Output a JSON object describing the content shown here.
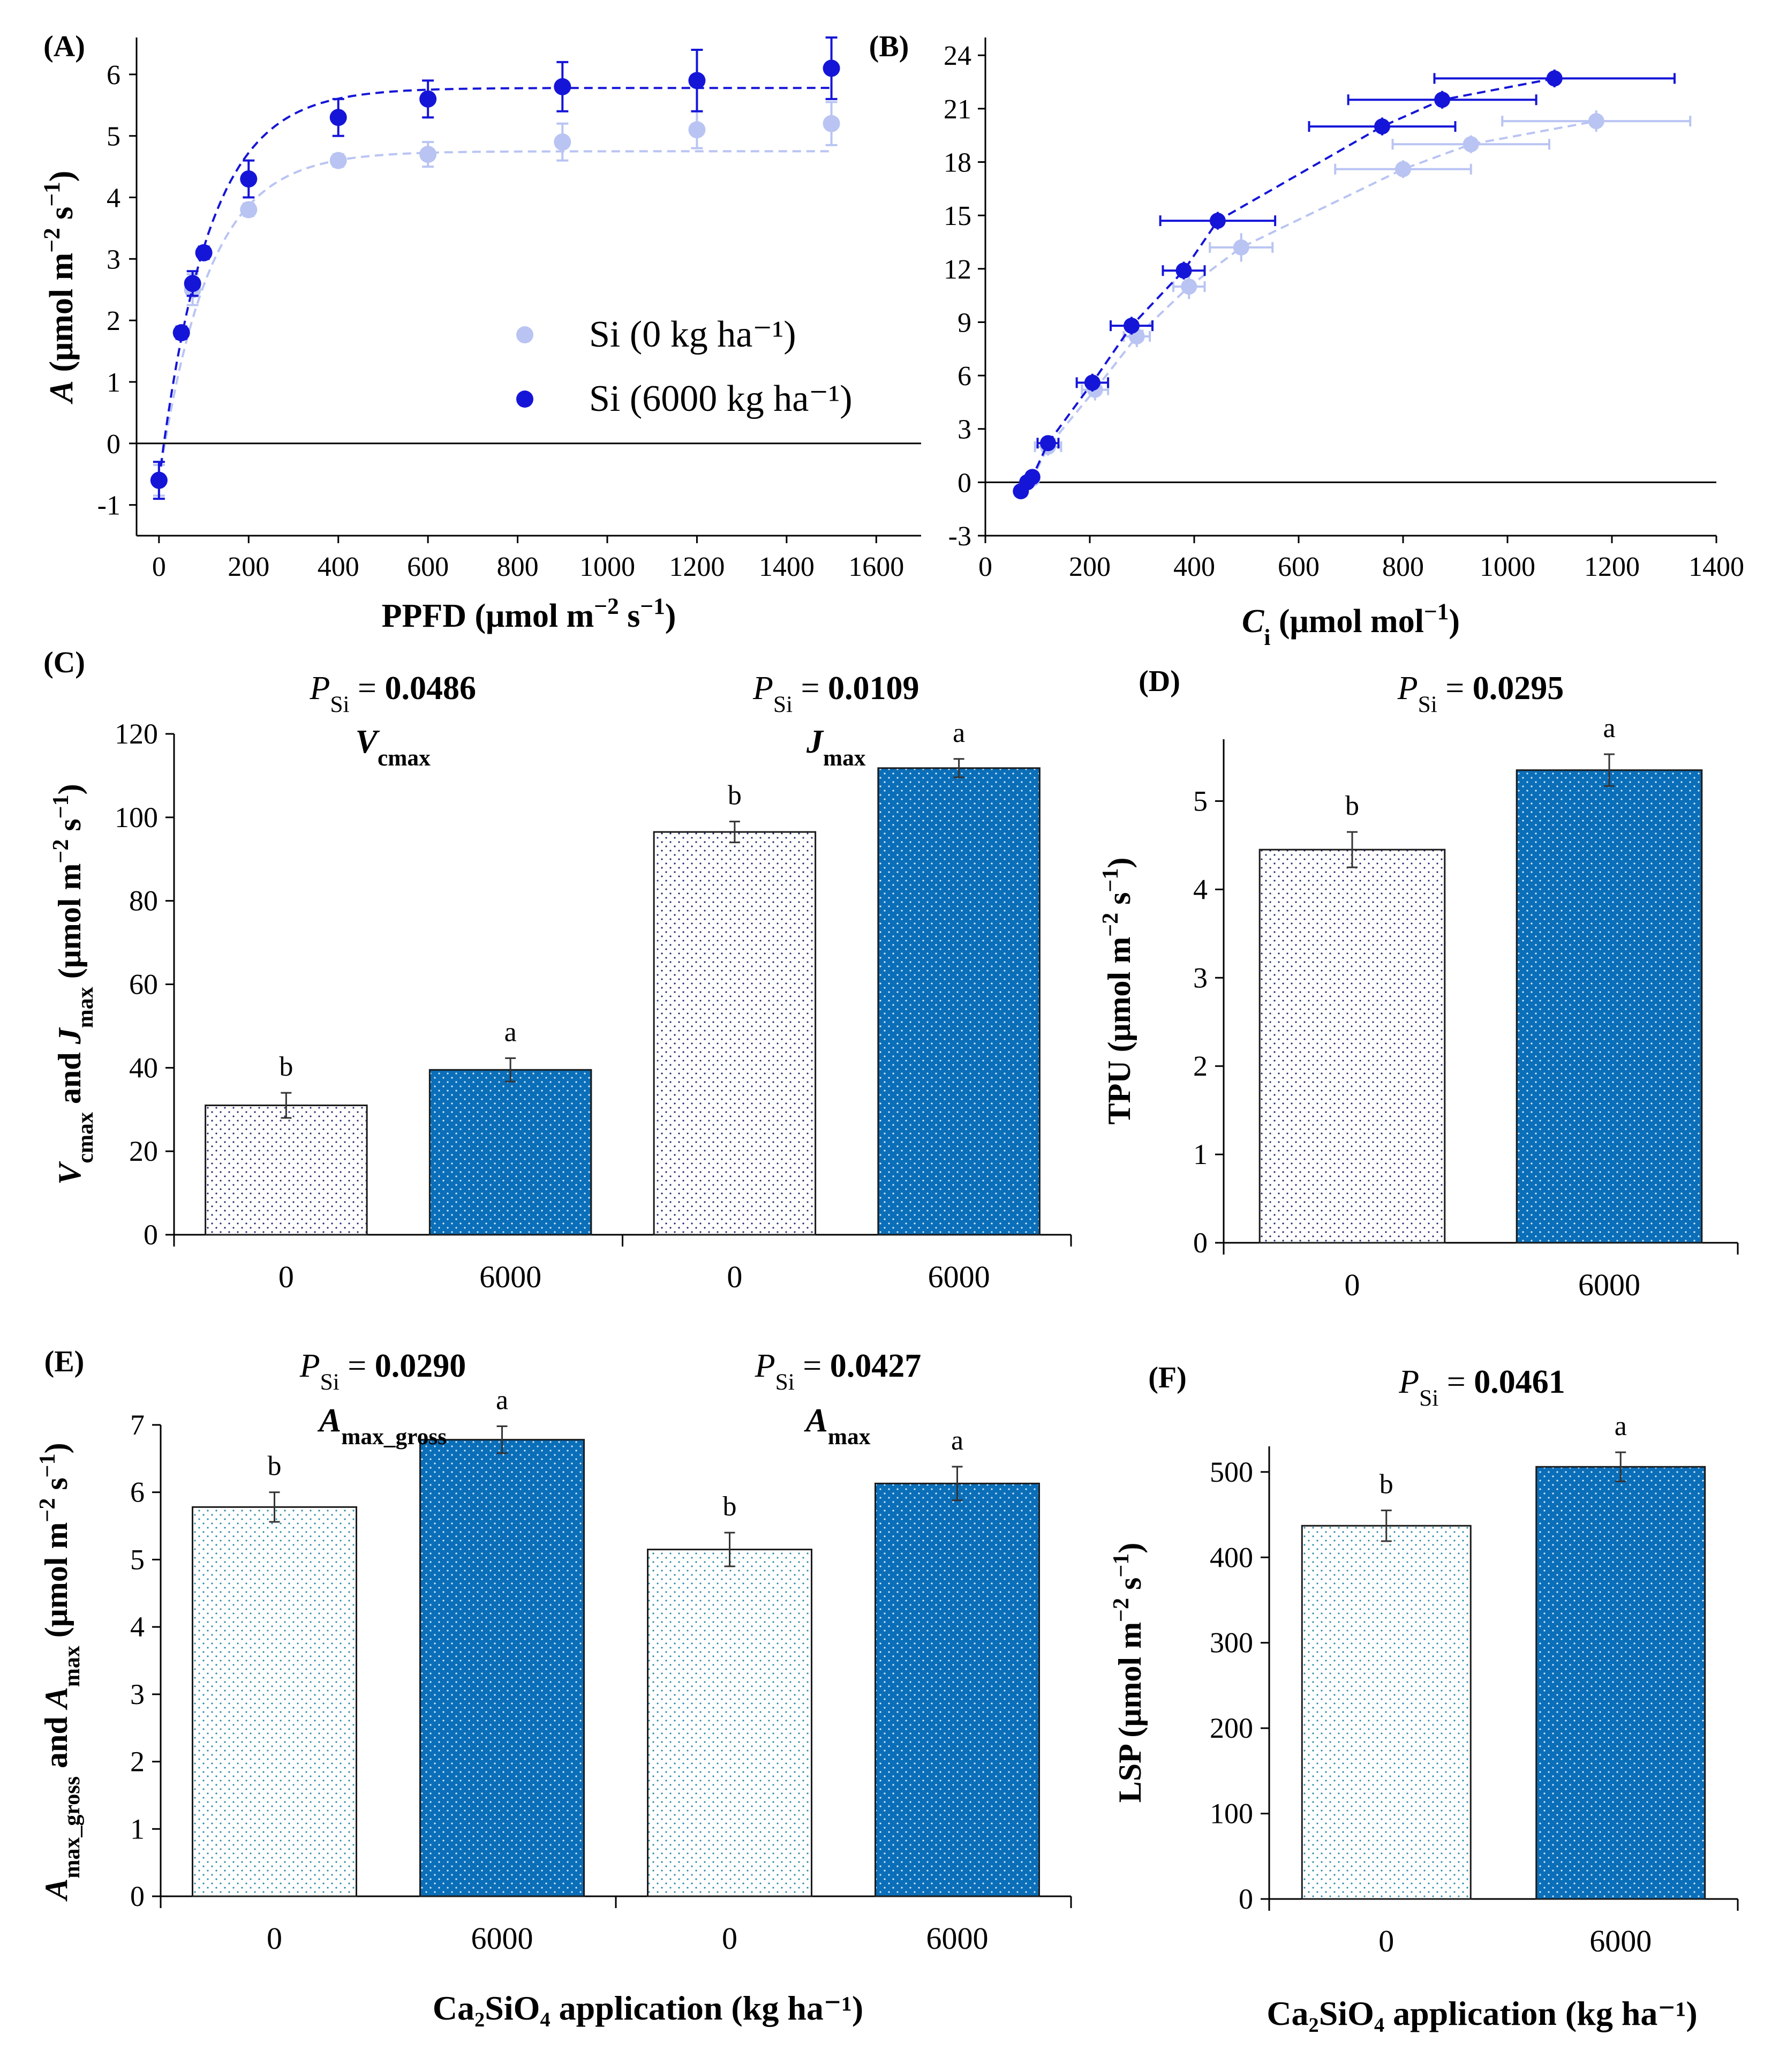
{
  "colors": {
    "light": "#b9c4f3",
    "dark": "#1515d8",
    "bar_dark": "#0b6eb8",
    "bar_light": "#ffffff",
    "axis": "#000000"
  },
  "chart_data": [
    {
      "panel": "(A)",
      "type": "scatter",
      "xlabel": "PPFD (μmol m⁻² s⁻¹)",
      "ylabel": "A (μmol m⁻² s⁻¹)",
      "xlim": [
        -50,
        1700
      ],
      "ylim": [
        -1.5,
        6.6
      ],
      "xticks": [
        "0",
        "200",
        "400",
        "600",
        "800",
        "1000",
        "1200",
        "1400",
        "1600"
      ],
      "yticks": [
        "-1",
        "0",
        "1",
        "2",
        "3",
        "4",
        "5",
        "6"
      ],
      "legend": [
        {
          "label": "Si (0 kg ha⁻¹)",
          "color": "#b9c4f3"
        },
        {
          "label": "Si (6000 kg ha⁻¹)",
          "color": "#1515d8"
        }
      ],
      "series": [
        {
          "name": "Si (0 kg ha⁻¹)",
          "color": "#b9c4f3",
          "x": [
            0,
            50,
            75,
            100,
            200,
            400,
            600,
            900,
            1200,
            1500
          ],
          "y": [
            -0.6,
            1.8,
            2.5,
            3.1,
            3.8,
            4.6,
            4.7,
            4.9,
            5.1,
            5.2
          ],
          "err": [
            0.25,
            0.1,
            0.25,
            0.1,
            0.1,
            0.1,
            0.2,
            0.3,
            0.3,
            0.35
          ],
          "fit": {
            "max": 4.75,
            "k": 0.009
          }
        },
        {
          "name": "Si (6000 kg ha⁻¹)",
          "color": "#1515d8",
          "x": [
            0,
            50,
            75,
            100,
            200,
            400,
            600,
            900,
            1200,
            1500
          ],
          "y": [
            -0.6,
            1.8,
            2.6,
            3.1,
            4.3,
            5.3,
            5.6,
            5.8,
            5.9,
            6.1
          ],
          "err": [
            0.3,
            0.1,
            0.2,
            0.1,
            0.3,
            0.3,
            0.3,
            0.4,
            0.5,
            0.5
          ],
          "fit": {
            "max": 5.78,
            "k": 0.009
          }
        }
      ]
    },
    {
      "panel": "(B)",
      "type": "scatter",
      "xlabel": "Ci (μmol mol⁻¹)",
      "ylabel": "",
      "xlim": [
        0,
        1400
      ],
      "ylim": [
        -3,
        25
      ],
      "xticks": [
        "0",
        "200",
        "400",
        "600",
        "800",
        "1000",
        "1200",
        "1400"
      ],
      "yticks": [
        "-3",
        "0",
        "3",
        "6",
        "9",
        "12",
        "15",
        "18",
        "21",
        "24"
      ],
      "series": [
        {
          "name": "Si (0 kg ha⁻¹)",
          "color": "#b9c4f3",
          "x": [
            68,
            80,
            90,
            120,
            210,
            290,
            390,
            490,
            800,
            930,
            1170
          ],
          "y": [
            -0.5,
            0,
            0.2,
            2,
            5.2,
            8.2,
            11,
            13.2,
            17.6,
            19,
            20.3
          ],
          "xerr": [
            10,
            10,
            10,
            25,
            25,
            25,
            30,
            60,
            130,
            150,
            180
          ],
          "yerr": [
            0.4,
            0.3,
            0.3,
            0.5,
            0.6,
            0.6,
            0.7,
            0.8,
            0.5,
            0.5,
            0.6
          ]
        },
        {
          "name": "Si (6000 kg ha⁻¹)",
          "color": "#1515d8",
          "x": [
            68,
            80,
            90,
            120,
            205,
            280,
            380,
            445,
            760,
            875,
            1090
          ],
          "y": [
            -0.5,
            0,
            0.3,
            2.2,
            5.6,
            8.8,
            11.9,
            14.7,
            20,
            21.5,
            22.7
          ],
          "xerr": [
            10,
            10,
            10,
            20,
            30,
            40,
            40,
            110,
            140,
            180,
            230
          ],
          "yerr": [
            0.3,
            0.3,
            0.3,
            0.4,
            0.5,
            0.5,
            0.5,
            0.5,
            0.5,
            0.5,
            0.5
          ]
        }
      ]
    },
    {
      "panel": "(C)",
      "type": "bar",
      "ylabel": "Vcmax and Jmax (μmol m⁻² s⁻¹)",
      "ylim": [
        0,
        120
      ],
      "yticks": [
        "0",
        "20",
        "40",
        "60",
        "80",
        "100",
        "120"
      ],
      "categories": [
        "0",
        "6000",
        "0",
        "6000"
      ],
      "values": [
        31,
        39.5,
        96.5,
        111.8
      ],
      "errors": [
        3,
        2.8,
        2.5,
        2.2
      ],
      "letters": [
        "b",
        "a",
        "b",
        "a"
      ],
      "groups": [
        {
          "name": "Vcmax",
          "p": "0.0486"
        },
        {
          "name": "Jmax",
          "p": "0.0109"
        }
      ]
    },
    {
      "panel": "(D)",
      "type": "bar",
      "ylabel": "TPU (μmol m⁻² s⁻¹)",
      "ylim": [
        0,
        5.7
      ],
      "yticks": [
        "0",
        "1",
        "2",
        "3",
        "4",
        "5"
      ],
      "categories": [
        "0",
        "6000"
      ],
      "values": [
        4.45,
        5.35
      ],
      "errors": [
        0.2,
        0.18
      ],
      "letters": [
        "b",
        "a"
      ],
      "p": "0.0295"
    },
    {
      "panel": "(E)",
      "type": "bar",
      "ylabel": "Amax_gross and Amax (μmol m⁻² s⁻¹)",
      "ylim": [
        0,
        7
      ],
      "yticks": [
        "0",
        "1",
        "2",
        "3",
        "4",
        "5",
        "6",
        "7"
      ],
      "categories": [
        "0",
        "6000",
        "0",
        "6000"
      ],
      "values": [
        5.78,
        6.78,
        5.15,
        6.13
      ],
      "errors": [
        0.22,
        0.2,
        0.25,
        0.25
      ],
      "letters": [
        "b",
        "a",
        "b",
        "a"
      ],
      "groups": [
        {
          "name": "Amax_gross",
          "p": "0.0290"
        },
        {
          "name": "Amax",
          "p": "0.0427"
        }
      ],
      "xlabel": "Ca₂SiO₄ application (kg ha⁻¹)"
    },
    {
      "panel": "(F)",
      "type": "bar",
      "ylabel": "LSP (μmol m⁻² s⁻¹)",
      "ylim": [
        0,
        530
      ],
      "yticks": [
        "0",
        "100",
        "200",
        "300",
        "400",
        "500"
      ],
      "categories": [
        "0",
        "6000"
      ],
      "values": [
        437,
        506
      ],
      "errors": [
        18,
        17
      ],
      "letters": [
        "b",
        "a"
      ],
      "p": "0.0461",
      "xlabel": "Ca₂SiO₄ application (kg ha⁻¹)"
    }
  ]
}
